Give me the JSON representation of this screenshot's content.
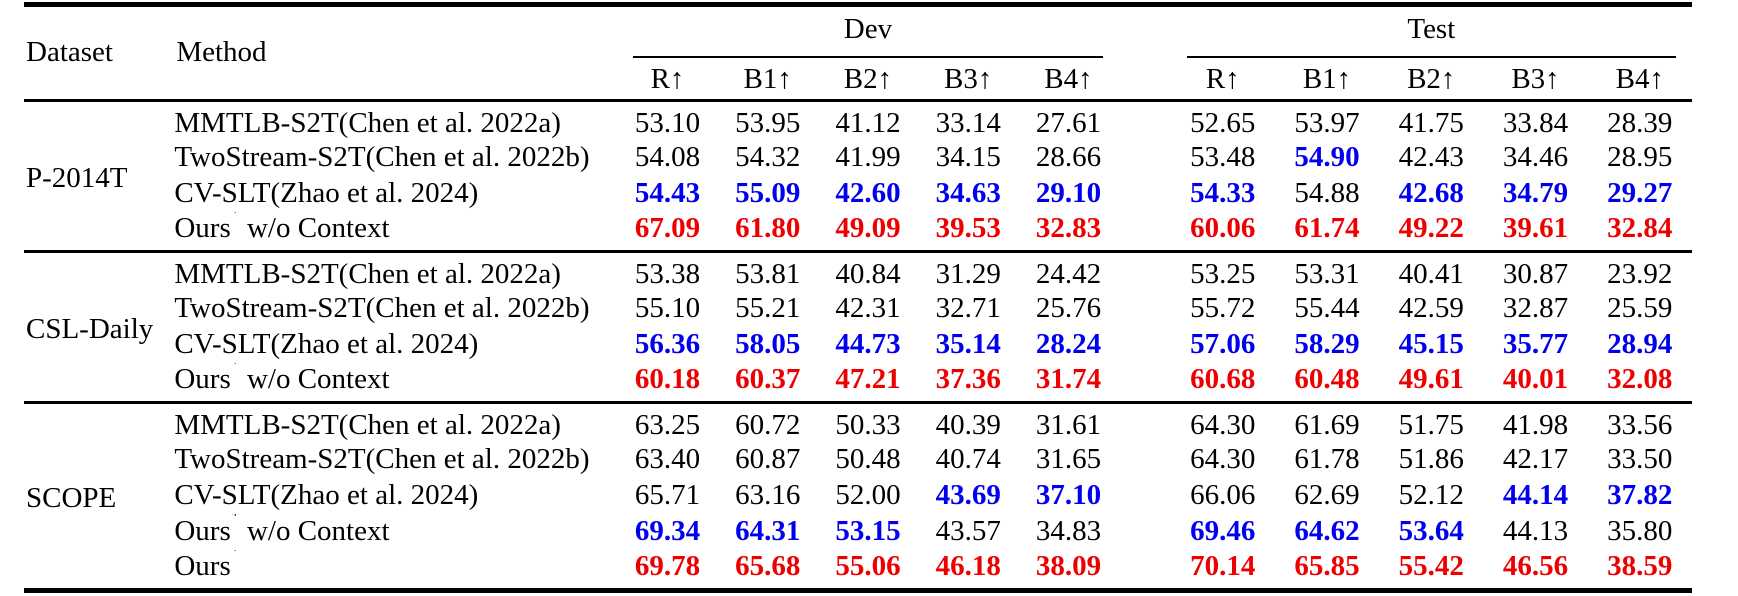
{
  "header": {
    "dataset": "Dataset",
    "method": "Method",
    "dev": "Dev",
    "test": "Test",
    "metrics": [
      "R↑",
      "B1↑",
      "B2↑",
      "B3↑",
      "B4↑"
    ]
  },
  "colors": {
    "best_value": "#EE0000",
    "second_best_value": "#0000EE",
    "normal_text": "#000000",
    "background": "#FFFFFF"
  },
  "groups": [
    {
      "dataset": "P-2014T",
      "rows": [
        {
          "method": "MMTLB-S2T(Chen et al. 2022a)",
          "dev": [
            {
              "v": "53.10",
              "s": "k"
            },
            {
              "v": "53.95",
              "s": "k"
            },
            {
              "v": "41.12",
              "s": "k"
            },
            {
              "v": "33.14",
              "s": "k"
            },
            {
              "v": "27.61",
              "s": "k"
            }
          ],
          "test": [
            {
              "v": "52.65",
              "s": "k"
            },
            {
              "v": "53.97",
              "s": "k"
            },
            {
              "v": "41.75",
              "s": "k"
            },
            {
              "v": "33.84",
              "s": "k"
            },
            {
              "v": "28.39",
              "s": "k"
            }
          ]
        },
        {
          "method": "TwoStream-S2T(Chen et al. 2022b)",
          "dev": [
            {
              "v": "54.08",
              "s": "k"
            },
            {
              "v": "54.32",
              "s": "k"
            },
            {
              "v": "41.99",
              "s": "k"
            },
            {
              "v": "34.15",
              "s": "k"
            },
            {
              "v": "28.66",
              "s": "k"
            }
          ],
          "test": [
            {
              "v": "53.48",
              "s": "k"
            },
            {
              "v": "54.90",
              "s": "b"
            },
            {
              "v": "42.43",
              "s": "k"
            },
            {
              "v": "34.46",
              "s": "k"
            },
            {
              "v": "28.95",
              "s": "k"
            }
          ]
        },
        {
          "method": "CV-SLT(Zhao et al. 2024)",
          "dev": [
            {
              "v": "54.43",
              "s": "b"
            },
            {
              "v": "55.09",
              "s": "b"
            },
            {
              "v": "42.60",
              "s": "b"
            },
            {
              "v": "34.63",
              "s": "b"
            },
            {
              "v": "29.10",
              "s": "b"
            }
          ],
          "test": [
            {
              "v": "54.33",
              "s": "b"
            },
            {
              "v": "54.88",
              "s": "k"
            },
            {
              "v": "42.68",
              "s": "b"
            },
            {
              "v": "34.79",
              "s": "b"
            },
            {
              "v": "29.27",
              "s": "b"
            }
          ]
        },
        {
          "method": "Ours* w/o Context",
          "dev": [
            {
              "v": "67.09",
              "s": "r"
            },
            {
              "v": "61.80",
              "s": "r"
            },
            {
              "v": "49.09",
              "s": "r"
            },
            {
              "v": "39.53",
              "s": "r"
            },
            {
              "v": "32.83",
              "s": "r"
            }
          ],
          "test": [
            {
              "v": "60.06",
              "s": "r"
            },
            {
              "v": "61.74",
              "s": "r"
            },
            {
              "v": "49.22",
              "s": "r"
            },
            {
              "v": "39.61",
              "s": "r"
            },
            {
              "v": "32.84",
              "s": "r"
            }
          ]
        }
      ]
    },
    {
      "dataset": "CSL-Daily",
      "rows": [
        {
          "method": "MMTLB-S2T(Chen et al. 2022a)",
          "dev": [
            {
              "v": "53.38",
              "s": "k"
            },
            {
              "v": "53.81",
              "s": "k"
            },
            {
              "v": "40.84",
              "s": "k"
            },
            {
              "v": "31.29",
              "s": "k"
            },
            {
              "v": "24.42",
              "s": "k"
            }
          ],
          "test": [
            {
              "v": "53.25",
              "s": "k"
            },
            {
              "v": "53.31",
              "s": "k"
            },
            {
              "v": "40.41",
              "s": "k"
            },
            {
              "v": "30.87",
              "s": "k"
            },
            {
              "v": "23.92",
              "s": "k"
            }
          ]
        },
        {
          "method": "TwoStream-S2T(Chen et al. 2022b)",
          "dev": [
            {
              "v": "55.10",
              "s": "k"
            },
            {
              "v": "55.21",
              "s": "k"
            },
            {
              "v": "42.31",
              "s": "k"
            },
            {
              "v": "32.71",
              "s": "k"
            },
            {
              "v": "25.76",
              "s": "k"
            }
          ],
          "test": [
            {
              "v": "55.72",
              "s": "k"
            },
            {
              "v": "55.44",
              "s": "k"
            },
            {
              "v": "42.59",
              "s": "k"
            },
            {
              "v": "32.87",
              "s": "k"
            },
            {
              "v": "25.59",
              "s": "k"
            }
          ]
        },
        {
          "method": "CV-SLT(Zhao et al. 2024)",
          "dev": [
            {
              "v": "56.36",
              "s": "b"
            },
            {
              "v": "58.05",
              "s": "b"
            },
            {
              "v": "44.73",
              "s": "b"
            },
            {
              "v": "35.14",
              "s": "b"
            },
            {
              "v": "28.24",
              "s": "b"
            }
          ],
          "test": [
            {
              "v": "57.06",
              "s": "b"
            },
            {
              "v": "58.29",
              "s": "b"
            },
            {
              "v": "45.15",
              "s": "b"
            },
            {
              "v": "35.77",
              "s": "b"
            },
            {
              "v": "28.94",
              "s": "b"
            }
          ]
        },
        {
          "method": "Ours* w/o Context",
          "dev": [
            {
              "v": "60.18",
              "s": "r"
            },
            {
              "v": "60.37",
              "s": "r"
            },
            {
              "v": "47.21",
              "s": "r"
            },
            {
              "v": "37.36",
              "s": "r"
            },
            {
              "v": "31.74",
              "s": "r"
            }
          ],
          "test": [
            {
              "v": "60.68",
              "s": "r"
            },
            {
              "v": "60.48",
              "s": "r"
            },
            {
              "v": "49.61",
              "s": "r"
            },
            {
              "v": "40.01",
              "s": "r"
            },
            {
              "v": "32.08",
              "s": "r"
            }
          ]
        }
      ]
    },
    {
      "dataset": "SCOPE",
      "rows": [
        {
          "method": "MMTLB-S2T(Chen et al. 2022a)",
          "dev": [
            {
              "v": "63.25",
              "s": "k"
            },
            {
              "v": "60.72",
              "s": "k"
            },
            {
              "v": "50.33",
              "s": "k"
            },
            {
              "v": "40.39",
              "s": "k"
            },
            {
              "v": "31.61",
              "s": "k"
            }
          ],
          "test": [
            {
              "v": "64.30",
              "s": "k"
            },
            {
              "v": "61.69",
              "s": "k"
            },
            {
              "v": "51.75",
              "s": "k"
            },
            {
              "v": "41.98",
              "s": "k"
            },
            {
              "v": "33.56",
              "s": "k"
            }
          ]
        },
        {
          "method": "TwoStream-S2T(Chen et al. 2022b)",
          "dev": [
            {
              "v": "63.40",
              "s": "k"
            },
            {
              "v": "60.87",
              "s": "k"
            },
            {
              "v": "50.48",
              "s": "k"
            },
            {
              "v": "40.74",
              "s": "k"
            },
            {
              "v": "31.65",
              "s": "k"
            }
          ],
          "test": [
            {
              "v": "64.30",
              "s": "k"
            },
            {
              "v": "61.78",
              "s": "k"
            },
            {
              "v": "51.86",
              "s": "k"
            },
            {
              "v": "42.17",
              "s": "k"
            },
            {
              "v": "33.50",
              "s": "k"
            }
          ]
        },
        {
          "method": "CV-SLT(Zhao et al. 2024)",
          "dev": [
            {
              "v": "65.71",
              "s": "k"
            },
            {
              "v": "63.16",
              "s": "k"
            },
            {
              "v": "52.00",
              "s": "k"
            },
            {
              "v": "43.69",
              "s": "b"
            },
            {
              "v": "37.10",
              "s": "b"
            }
          ],
          "test": [
            {
              "v": "66.06",
              "s": "k"
            },
            {
              "v": "62.69",
              "s": "k"
            },
            {
              "v": "52.12",
              "s": "k"
            },
            {
              "v": "44.14",
              "s": "b"
            },
            {
              "v": "37.82",
              "s": "b"
            }
          ]
        },
        {
          "method": "Ours* w/o Context",
          "dev": [
            {
              "v": "69.34",
              "s": "b"
            },
            {
              "v": "64.31",
              "s": "b"
            },
            {
              "v": "53.15",
              "s": "b"
            },
            {
              "v": "43.57",
              "s": "k"
            },
            {
              "v": "34.83",
              "s": "k"
            }
          ],
          "test": [
            {
              "v": "69.46",
              "s": "b"
            },
            {
              "v": "64.62",
              "s": "b"
            },
            {
              "v": "53.64",
              "s": "b"
            },
            {
              "v": "44.13",
              "s": "k"
            },
            {
              "v": "35.80",
              "s": "k"
            }
          ]
        },
        {
          "method": "Ours*",
          "dev": [
            {
              "v": "69.78",
              "s": "r"
            },
            {
              "v": "65.68",
              "s": "r"
            },
            {
              "v": "55.06",
              "s": "r"
            },
            {
              "v": "46.18",
              "s": "r"
            },
            {
              "v": "38.09",
              "s": "r"
            }
          ],
          "test": [
            {
              "v": "70.14",
              "s": "r"
            },
            {
              "v": "65.85",
              "s": "r"
            },
            {
              "v": "55.42",
              "s": "r"
            },
            {
              "v": "46.56",
              "s": "r"
            },
            {
              "v": "38.59",
              "s": "r"
            }
          ]
        }
      ]
    }
  ]
}
